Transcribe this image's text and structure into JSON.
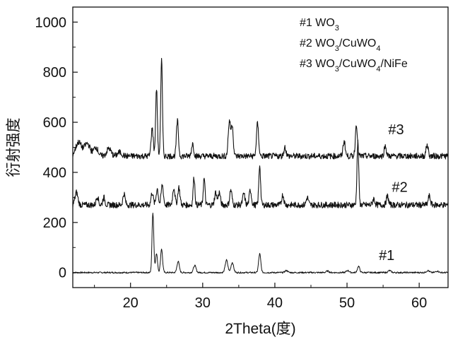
{
  "chart_data": {
    "type": "line",
    "title": "",
    "xlabel": "2Theta(度)",
    "ylabel": "衍射强度",
    "xlim": [
      12,
      64
    ],
    "ylim": [
      -60,
      1060
    ],
    "xticks": [
      20,
      30,
      40,
      50,
      60
    ],
    "yticks": [
      0,
      200,
      400,
      600,
      800,
      1000
    ],
    "grid": false,
    "legend": {
      "placement": "top-right",
      "entries": [
        {
          "id": "#1",
          "sep": "  ",
          "parts": [
            [
              "WO",
              ""
            ],
            [
              "3",
              "sub"
            ]
          ]
        },
        {
          "id": "#2",
          "sep": "  ",
          "parts": [
            [
              "WO",
              ""
            ],
            [
              "3",
              "sub"
            ],
            [
              "/CuWO",
              ""
            ],
            [
              "4",
              "sub"
            ]
          ]
        },
        {
          "id": "#3",
          "sep": "  ",
          "parts": [
            [
              "WO",
              ""
            ],
            [
              "3",
              "sub"
            ],
            [
              "/CuWO",
              ""
            ],
            [
              "4",
              "sub"
            ],
            [
              "/NiFe",
              ""
            ]
          ]
        }
      ]
    },
    "series": [
      {
        "name": "#1",
        "label_x": 55.5,
        "label_y": 50,
        "baseline": 0,
        "noise": 3,
        "peaks": [
          [
            23.1,
            240,
            0.12
          ],
          [
            23.6,
            75,
            0.14
          ],
          [
            24.3,
            95,
            0.14
          ],
          [
            26.6,
            45,
            0.16
          ],
          [
            28.9,
            28,
            0.18
          ],
          [
            33.3,
            50,
            0.18
          ],
          [
            34.1,
            40,
            0.18
          ],
          [
            37.9,
            75,
            0.15
          ],
          [
            41.6,
            8,
            0.2
          ],
          [
            47.3,
            6,
            0.2
          ],
          [
            50.1,
            8,
            0.2
          ],
          [
            51.6,
            25,
            0.16
          ],
          [
            55.9,
            8,
            0.2
          ],
          [
            61.2,
            8,
            0.2
          ],
          [
            62.5,
            6,
            0.2
          ]
        ]
      },
      {
        "name": "#2",
        "label_x": 57.3,
        "label_y": 322,
        "baseline": 270,
        "noise": 12,
        "peaks": [
          [
            12.5,
            50,
            0.2
          ],
          [
            15.4,
            35,
            0.15
          ],
          [
            16.3,
            30,
            0.15
          ],
          [
            19.1,
            45,
            0.15
          ],
          [
            23.0,
            50,
            0.15
          ],
          [
            23.7,
            65,
            0.15
          ],
          [
            24.4,
            80,
            0.15
          ],
          [
            26.0,
            70,
            0.15
          ],
          [
            26.7,
            70,
            0.15
          ],
          [
            28.8,
            110,
            0.12
          ],
          [
            30.2,
            105,
            0.12
          ],
          [
            31.8,
            50,
            0.15
          ],
          [
            32.3,
            50,
            0.15
          ],
          [
            33.9,
            60,
            0.15
          ],
          [
            35.7,
            45,
            0.15
          ],
          [
            36.6,
            60,
            0.15
          ],
          [
            37.9,
            160,
            0.12
          ],
          [
            41.1,
            40,
            0.15
          ],
          [
            44.5,
            30,
            0.15
          ],
          [
            51.5,
            250,
            0.12
          ],
          [
            53.7,
            25,
            0.15
          ],
          [
            55.6,
            35,
            0.15
          ],
          [
            61.4,
            35,
            0.15
          ]
        ]
      },
      {
        "name": "#3",
        "label_x": 56.8,
        "label_y": 552,
        "baseline": 465,
        "noise": 12,
        "peaks": [
          [
            12.8,
            55,
            0.4
          ],
          [
            14.0,
            50,
            0.4
          ],
          [
            15.2,
            35,
            0.3
          ],
          [
            17.0,
            30,
            0.3
          ],
          [
            18.5,
            15,
            0.3
          ],
          [
            23.0,
            110,
            0.15
          ],
          [
            23.6,
            270,
            0.12
          ],
          [
            24.3,
            390,
            0.12
          ],
          [
            26.5,
            140,
            0.14
          ],
          [
            28.6,
            50,
            0.15
          ],
          [
            33.7,
            140,
            0.16
          ],
          [
            34.1,
            120,
            0.14
          ],
          [
            37.6,
            130,
            0.15
          ],
          [
            41.4,
            35,
            0.15
          ],
          [
            49.6,
            60,
            0.15
          ],
          [
            51.3,
            130,
            0.14
          ],
          [
            55.3,
            40,
            0.15
          ],
          [
            61.1,
            45,
            0.15
          ]
        ]
      }
    ]
  }
}
